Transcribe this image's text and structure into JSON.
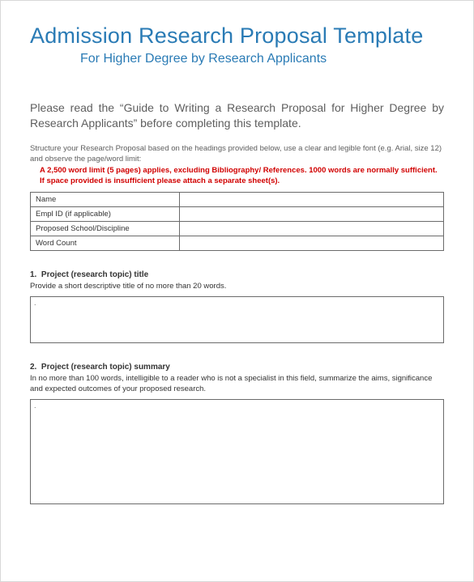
{
  "colors": {
    "heading": "#2a7bb5",
    "body_text": "#5e5e5e",
    "warning": "#d10000",
    "border": "#6b6b6b",
    "page_border": "#d8d8d8",
    "background": "#ffffff"
  },
  "title": {
    "main": "Admission Research Proposal Template",
    "sub": "For Higher Degree by Research Applicants"
  },
  "intro": "Please read the “Guide to Writing a Research Proposal for Higher Degree by Research Applicants” before completing this template.",
  "structure_note": "Structure your Research Proposal based on the headings provided below, use a clear and legible font (e.g. Arial, size 12) and observe the page/word limit:",
  "limit_note": "A 2,500 word limit (5 pages) applies, excluding Bibliography/ References. 1000 words are normally sufficient. If space provided is insufficient please attach a separate sheet(s).",
  "info_table": {
    "rows": [
      {
        "label": "Name",
        "value": ""
      },
      {
        "label": "Empl ID (if applicable)",
        "value": ""
      },
      {
        "label": "Proposed School/Discipline",
        "value": ""
      },
      {
        "label": "Word Count",
        "value": ""
      }
    ]
  },
  "sections": [
    {
      "number": "1.",
      "title": "Project (research topic) title",
      "desc": "Provide a short descriptive title of no more than 20 words.",
      "box_size": "small",
      "box_placeholder": "."
    },
    {
      "number": "2.",
      "title": "Project (research topic) summary",
      "desc": "In no more than 100 words, intelligible to a reader who is not a specialist in this field, summarize the aims, significance and expected outcomes of your proposed research.",
      "box_size": "large",
      "box_placeholder": "."
    }
  ]
}
